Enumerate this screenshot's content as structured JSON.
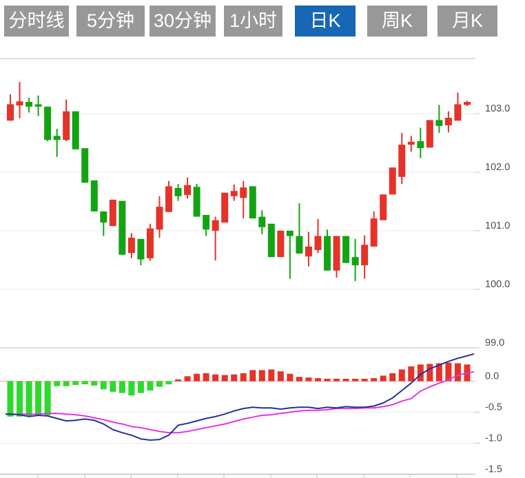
{
  "tabbar": {
    "items": [
      {
        "label": "分时线",
        "active": false
      },
      {
        "label": "5分钟",
        "active": false
      },
      {
        "label": "30分钟",
        "active": false
      },
      {
        "label": "1小时",
        "active": false
      },
      {
        "label": "日K",
        "active": true
      },
      {
        "label": "周K",
        "active": false
      },
      {
        "label": "月K",
        "active": false
      }
    ],
    "inactive_bg": "#989898",
    "active_bg": "#1767b4",
    "text_color": "#ffffff"
  },
  "chart_data": {
    "type": "candlestick_with_macd",
    "legend_position": "none",
    "grid": true,
    "colors": {
      "up": "#e5332a",
      "down": "#13a413",
      "hist_positive": "#e5332a",
      "hist_negative": "#2cd92c",
      "diff_line": "#23319b",
      "dea_line": "#e632e6",
      "grid_light": "#eaeaea",
      "grid_dark": "#d4d4d4",
      "zero_line": "#f2b1ac",
      "axis_text": "#4d4d4d",
      "bottom_axis": "#c0c0c0"
    },
    "price_axis": {
      "tick_labels": [
        "103.0",
        "102.0",
        "101.0",
        "100.0",
        "99.0"
      ],
      "tick_values": [
        103.0,
        102.0,
        101.0,
        100.0,
        99.0
      ],
      "ylim": [
        98.94,
        103.94
      ]
    },
    "indicator_axis": {
      "tick_labels": [
        "0.0",
        "-0.5",
        "-1.0",
        "-1.5"
      ],
      "tick_values": [
        0.0,
        -0.5,
        -1.0,
        -1.5
      ],
      "ylim": [
        -1.5,
        0.5
      ]
    },
    "candles_ohlc": [
      [
        102.88,
        103.33,
        102.88,
        103.16
      ],
      [
        103.14,
        103.54,
        102.92,
        103.21
      ],
      [
        103.2,
        103.27,
        103.02,
        103.12
      ],
      [
        103.16,
        103.31,
        102.96,
        103.12
      ],
      [
        103.12,
        103.12,
        102.53,
        102.55
      ],
      [
        102.62,
        102.74,
        102.26,
        102.55
      ],
      [
        102.55,
        103.24,
        102.53,
        103.04
      ],
      [
        103.04,
        103.04,
        102.39,
        102.39
      ],
      [
        102.41,
        102.41,
        101.82,
        101.82
      ],
      [
        101.86,
        101.86,
        101.33,
        101.33
      ],
      [
        101.33,
        101.33,
        100.91,
        101.14
      ],
      [
        101.08,
        101.53,
        101.08,
        101.53
      ],
      [
        101.51,
        101.51,
        100.59,
        100.59
      ],
      [
        100.62,
        100.96,
        100.53,
        100.88
      ],
      [
        100.86,
        100.86,
        100.41,
        100.51
      ],
      [
        100.53,
        101.12,
        100.49,
        101.04
      ],
      [
        101.02,
        101.59,
        100.88,
        101.41
      ],
      [
        101.32,
        101.85,
        101.32,
        101.76
      ],
      [
        101.73,
        101.8,
        101.51,
        101.59
      ],
      [
        101.61,
        101.91,
        101.55,
        101.78
      ],
      [
        101.75,
        101.8,
        101.24,
        101.24
      ],
      [
        101.27,
        101.27,
        100.91,
        101.02
      ],
      [
        101.0,
        101.24,
        100.49,
        101.18
      ],
      [
        101.14,
        101.65,
        101.14,
        101.65
      ],
      [
        101.59,
        101.79,
        101.51,
        101.68
      ],
      [
        101.56,
        101.85,
        101.21,
        101.74
      ],
      [
        101.76,
        101.76,
        101.21,
        101.21
      ],
      [
        101.24,
        101.35,
        100.94,
        101.06
      ],
      [
        101.12,
        101.12,
        100.55,
        100.55
      ],
      [
        100.55,
        101.0,
        100.55,
        101.0
      ],
      [
        101.0,
        101.0,
        100.18,
        100.91
      ],
      [
        100.91,
        101.47,
        100.61,
        100.61
      ],
      [
        100.56,
        100.98,
        100.39,
        100.73
      ],
      [
        100.67,
        101.2,
        100.62,
        100.91
      ],
      [
        100.91,
        101.02,
        100.32,
        100.32
      ],
      [
        100.32,
        100.91,
        100.2,
        100.91
      ],
      [
        100.91,
        100.91,
        100.45,
        100.45
      ],
      [
        100.55,
        100.86,
        100.14,
        100.41
      ],
      [
        100.41,
        100.92,
        100.18,
        100.76
      ],
      [
        100.73,
        101.33,
        100.73,
        101.21
      ],
      [
        101.18,
        101.62,
        101.18,
        101.62
      ],
      [
        101.62,
        102.08,
        101.62,
        102.08
      ],
      [
        101.92,
        102.67,
        101.8,
        102.47
      ],
      [
        102.47,
        102.62,
        102.35,
        102.52
      ],
      [
        102.53,
        102.76,
        102.24,
        102.41
      ],
      [
        102.42,
        102.89,
        102.42,
        102.89
      ],
      [
        102.89,
        103.15,
        102.67,
        102.79
      ],
      [
        102.8,
        103.04,
        102.68,
        102.93
      ],
      [
        102.88,
        103.36,
        102.88,
        103.16
      ],
      [
        103.15,
        103.22,
        103.13,
        103.2
      ]
    ],
    "macd": {
      "histogram": [
        -0.57,
        -0.57,
        -0.56,
        -0.56,
        -0.55,
        -0.08,
        -0.08,
        -0.06,
        -0.05,
        -0.07,
        -0.13,
        -0.17,
        -0.19,
        -0.23,
        -0.19,
        -0.15,
        -0.09,
        -0.05,
        0.03,
        0.08,
        0.12,
        0.13,
        0.11,
        0.1,
        0.11,
        0.13,
        0.18,
        0.18,
        0.19,
        0.16,
        0.12,
        0.07,
        0.06,
        0.05,
        0.04,
        0.04,
        0.04,
        0.04,
        0.04,
        0.05,
        0.09,
        0.13,
        0.19,
        0.24,
        0.27,
        0.28,
        0.29,
        0.3,
        0.29,
        0.27
      ],
      "diff": [
        -0.53,
        -0.54,
        -0.57,
        -0.55,
        -0.56,
        -0.6,
        -0.64,
        -0.63,
        -0.61,
        -0.63,
        -0.69,
        -0.78,
        -0.83,
        -0.87,
        -0.93,
        -0.95,
        -0.94,
        -0.87,
        -0.71,
        -0.68,
        -0.64,
        -0.6,
        -0.57,
        -0.53,
        -0.48,
        -0.44,
        -0.42,
        -0.43,
        -0.43,
        -0.45,
        -0.43,
        -0.42,
        -0.42,
        -0.44,
        -0.42,
        -0.43,
        -0.41,
        -0.42,
        -0.42,
        -0.4,
        -0.35,
        -0.27,
        -0.15,
        -0.03,
        0.11,
        0.2,
        0.26,
        0.32,
        0.37,
        0.41
      ],
      "dea": [
        -0.53,
        -0.53,
        -0.53,
        -0.53,
        -0.52,
        -0.52,
        -0.53,
        -0.54,
        -0.56,
        -0.59,
        -0.62,
        -0.66,
        -0.69,
        -0.73,
        -0.75,
        -0.78,
        -0.81,
        -0.83,
        -0.83,
        -0.81,
        -0.78,
        -0.75,
        -0.72,
        -0.69,
        -0.65,
        -0.61,
        -0.58,
        -0.55,
        -0.54,
        -0.52,
        -0.5,
        -0.48,
        -0.47,
        -0.47,
        -0.46,
        -0.44,
        -0.44,
        -0.44,
        -0.43,
        -0.43,
        -0.41,
        -0.38,
        -0.32,
        -0.28,
        -0.16,
        -0.09,
        -0.03,
        0.02,
        0.1,
        0.13
      ]
    }
  }
}
